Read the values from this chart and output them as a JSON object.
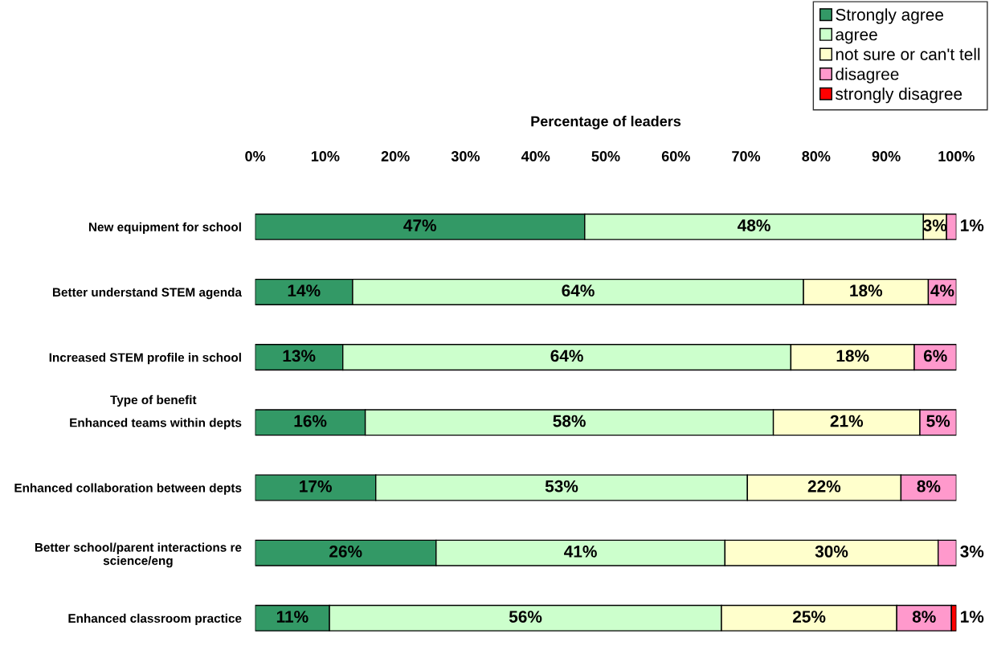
{
  "chart_data": {
    "type": "bar",
    "orientation": "horizontal",
    "stacked": true,
    "title": "Percentage of leaders",
    "ylabel": "Type of benefit",
    "categories": [
      "New equipment for school",
      "Better understand STEM agenda",
      "Increased STEM profile in school",
      "Enhanced teams within depts",
      "Enhanced collaboration between depts",
      "Better school/parent interactions re science/eng",
      "Enhanced classroom practice"
    ],
    "xlim": [
      0,
      100
    ],
    "xticks": [
      {
        "value": 0,
        "label": "0%"
      },
      {
        "value": 10,
        "label": "10%"
      },
      {
        "value": 20,
        "label": "20%"
      },
      {
        "value": 30,
        "label": "30%"
      },
      {
        "value": 40,
        "label": "40%"
      },
      {
        "value": 50,
        "label": "50%"
      },
      {
        "value": 60,
        "label": "60%"
      },
      {
        "value": 70,
        "label": "70%"
      },
      {
        "value": 80,
        "label": "80%"
      },
      {
        "value": 90,
        "label": "90%"
      },
      {
        "value": 100,
        "label": "100%"
      }
    ],
    "series": [
      {
        "name": "Strongly agree",
        "color": "#339966",
        "values": [
          47.0,
          13.9,
          12.5,
          15.7,
          17.2,
          25.8,
          10.6
        ],
        "value_labels": [
          "47%",
          "14%",
          "13%",
          "16%",
          "17%",
          "26%",
          "11%"
        ]
      },
      {
        "name": "agree",
        "color": "#ccffcc",
        "values": [
          48.3,
          64.3,
          63.9,
          58.2,
          53.0,
          41.2,
          55.9
        ],
        "value_labels": [
          "48%",
          "64%",
          "64%",
          "58%",
          "53%",
          "41%",
          "56%"
        ]
      },
      {
        "name": "not sure or can't tell",
        "color": "#ffffcc",
        "values": [
          3.3,
          17.8,
          17.6,
          20.9,
          21.9,
          30.4,
          25.0
        ],
        "value_labels": [
          "3%",
          "18%",
          "18%",
          "21%",
          "22%",
          "30%",
          "25%"
        ]
      },
      {
        "name": "disagree",
        "color": "#ff99cc",
        "values": [
          1.4,
          4.0,
          6.0,
          5.2,
          7.9,
          2.6,
          7.8
        ],
        "value_labels": [
          "1%",
          "4%",
          "6%",
          "5%",
          "8%",
          "3%",
          "8%"
        ]
      },
      {
        "name": "strongly disagree",
        "color": "#ff0000",
        "values": [
          null,
          null,
          null,
          null,
          null,
          null,
          0.7
        ],
        "value_labels": [
          null,
          null,
          null,
          null,
          null,
          null,
          "1%"
        ]
      }
    ],
    "grid": false,
    "legend": "top right"
  }
}
